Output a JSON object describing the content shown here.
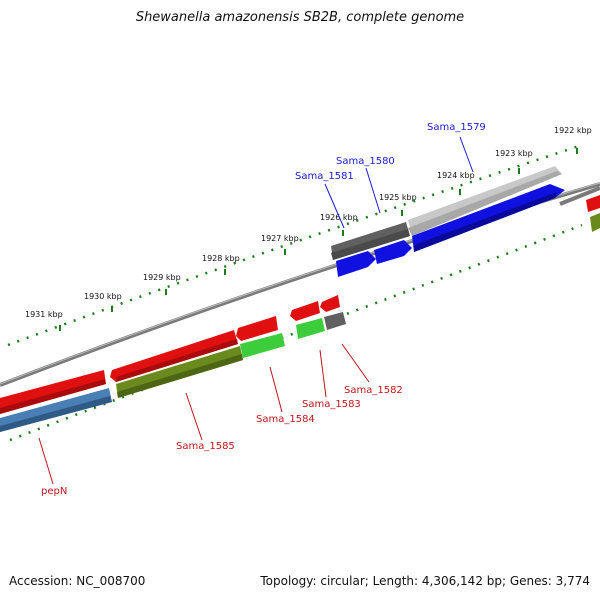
{
  "title": "Shewanella amazonensis SB2B, complete genome",
  "footer": {
    "accession": "Accession: NC_008700",
    "summary": "Topology: circular; Length: 4,306,142 bp; Genes: 3,774"
  },
  "scale": {
    "unit": "kbp",
    "ticks": [
      {
        "label": "1922 kbp"
      },
      {
        "label": "1923 kbp"
      },
      {
        "label": "1924 kbp"
      },
      {
        "label": "1925 kbp"
      },
      {
        "label": "1926 kbp"
      },
      {
        "label": "1927 kbp"
      },
      {
        "label": "1928 kbp"
      },
      {
        "label": "1929 kbp"
      },
      {
        "label": "1930 kbp"
      },
      {
        "label": "1931 kbp"
      }
    ]
  },
  "gene_labels": {
    "forward": [
      "Sama_1579",
      "Sama_1580",
      "Sama_1581"
    ],
    "reverse": [
      "Sama_1582",
      "Sama_1583",
      "Sama_1584",
      "Sama_1585",
      "pepN"
    ]
  },
  "colors": {
    "forward_gene": "#1010e0",
    "reverse_gene": "#e01010",
    "forward_label": "#1a1adb",
    "reverse_label": "#c0141c",
    "cog_green": "#3ccc3c",
    "cog_olive": "#6b8a1e",
    "cog_steel": "#4a7fb5",
    "cog_gray": "#666666",
    "cog_lightgray": "#c8c8c8",
    "tick_green": "#1d7a1d",
    "backbone": "#808080"
  }
}
